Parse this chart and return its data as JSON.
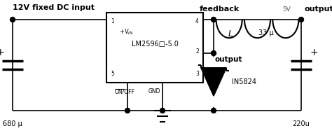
{
  "background_color": "#ffffff",
  "figsize": [
    4.74,
    1.9
  ],
  "dpi": 100,
  "ic_label": "LM2596□-5.0",
  "text_12v": "12V fixed DC input",
  "text_feedback": "feedback",
  "text_output_node": "output",
  "text_5v_output": "5V  output",
  "text_680u": "680 μ",
  "text_220u": "220u",
  "text_L": "L",
  "text_33u": "33 μ",
  "text_in5824": "IN5824",
  "text_onoff": "ON/OFF",
  "text_gnd": "GND",
  "line_color": "#000000",
  "lw": 1.2
}
